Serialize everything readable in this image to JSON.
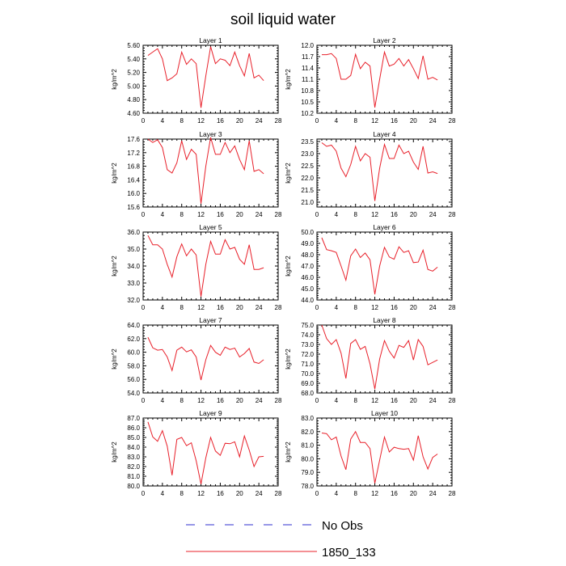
{
  "title": "soil liquid water",
  "chart_data": [
    {
      "type": "line",
      "title": "Layer 1",
      "ylabel": "kg/m^2",
      "xlim": [
        0,
        28
      ],
      "ylim": [
        4.6,
        5.6
      ],
      "xticks": [
        "0",
        "4",
        "8",
        "12",
        "16",
        "20",
        "24",
        "28"
      ],
      "yticks": [
        "4.60",
        "4.80",
        "5.00",
        "5.20",
        "5.40",
        "5.60"
      ],
      "series": [
        {
          "name": "1850_133",
          "x": [
            1,
            2,
            3,
            4,
            5,
            6,
            7,
            8,
            9,
            10,
            11,
            12,
            13,
            14,
            15,
            16,
            17,
            18,
            19,
            20,
            21,
            22,
            23,
            24,
            25
          ],
          "values": [
            5.45,
            5.5,
            5.55,
            5.4,
            5.08,
            5.12,
            5.18,
            5.5,
            5.32,
            5.4,
            5.33,
            4.68,
            5.15,
            5.58,
            5.33,
            5.4,
            5.38,
            5.3,
            5.5,
            5.3,
            5.15,
            5.48,
            5.12,
            5.16,
            5.08
          ]
        }
      ]
    },
    {
      "type": "line",
      "title": "Layer 2",
      "ylabel": "kg/m^2",
      "xlim": [
        0,
        28
      ],
      "ylim": [
        10.2,
        12.0
      ],
      "xticks": [
        "0",
        "4",
        "8",
        "12",
        "16",
        "20",
        "24",
        "28"
      ],
      "yticks": [
        "10.2",
        "10.5",
        "10.8",
        "11.1",
        "11.4",
        "11.7",
        "12.0"
      ],
      "series": [
        {
          "name": "1850_133",
          "x": [
            1,
            2,
            3,
            4,
            5,
            6,
            7,
            8,
            9,
            10,
            11,
            12,
            13,
            14,
            15,
            16,
            17,
            18,
            19,
            20,
            21,
            22,
            23,
            24,
            25
          ],
          "values": [
            11.75,
            11.75,
            11.78,
            11.65,
            11.1,
            11.1,
            11.2,
            11.76,
            11.38,
            11.55,
            11.45,
            10.35,
            11.1,
            11.82,
            11.45,
            11.5,
            11.65,
            11.45,
            11.62,
            11.38,
            11.12,
            11.72,
            11.1,
            11.15,
            11.08
          ]
        }
      ]
    },
    {
      "type": "line",
      "title": "Layer 3",
      "ylabel": "kg/m^2",
      "xlim": [
        0,
        28
      ],
      "ylim": [
        15.6,
        17.6
      ],
      "xticks": [
        "0",
        "4",
        "8",
        "12",
        "16",
        "20",
        "24",
        "28"
      ],
      "yticks": [
        "15.6",
        "16.0",
        "16.4",
        "16.8",
        "17.2",
        "17.6"
      ],
      "series": [
        {
          "name": "1850_133",
          "x": [
            1,
            2,
            3,
            4,
            5,
            6,
            7,
            8,
            9,
            10,
            11,
            12,
            13,
            14,
            15,
            16,
            17,
            18,
            19,
            20,
            21,
            22,
            23,
            24,
            25
          ],
          "values": [
            17.6,
            17.5,
            17.58,
            17.35,
            16.7,
            16.6,
            16.9,
            17.55,
            17.0,
            17.3,
            17.15,
            15.7,
            16.8,
            17.65,
            17.15,
            17.15,
            17.5,
            17.2,
            17.4,
            17.0,
            16.7,
            17.55,
            16.65,
            16.7,
            16.58
          ]
        }
      ]
    },
    {
      "type": "line",
      "title": "Layer 4",
      "ylabel": "kg/m^2",
      "xlim": [
        0,
        28
      ],
      "ylim": [
        20.8,
        23.6
      ],
      "xticks": [
        "0",
        "4",
        "8",
        "12",
        "16",
        "20",
        "24",
        "28"
      ],
      "yticks": [
        "21.0",
        "21.5",
        "22.0",
        "22.5",
        "23.0",
        "23.5"
      ],
      "series": [
        {
          "name": "1850_133",
          "x": [
            1,
            2,
            3,
            4,
            5,
            6,
            7,
            8,
            9,
            10,
            11,
            12,
            13,
            14,
            15,
            16,
            17,
            18,
            19,
            20,
            21,
            22,
            23,
            24,
            25
          ],
          "values": [
            23.45,
            23.3,
            23.35,
            23.1,
            22.4,
            22.05,
            22.55,
            23.3,
            22.7,
            23.0,
            22.85,
            21.05,
            22.4,
            23.38,
            22.8,
            22.8,
            23.35,
            23.0,
            23.1,
            22.65,
            22.35,
            23.3,
            22.2,
            22.25,
            22.18
          ]
        }
      ]
    },
    {
      "type": "line",
      "title": "Layer 5",
      "ylabel": "kg/m^2",
      "xlim": [
        0,
        28
      ],
      "ylim": [
        32.0,
        36.0
      ],
      "xticks": [
        "0",
        "4",
        "8",
        "12",
        "16",
        "20",
        "24",
        "28"
      ],
      "yticks": [
        "32.0",
        "33.0",
        "34.0",
        "35.0",
        "36.0"
      ],
      "series": [
        {
          "name": "1850_133",
          "x": [
            1,
            2,
            3,
            4,
            5,
            6,
            7,
            8,
            9,
            10,
            11,
            12,
            13,
            14,
            15,
            16,
            17,
            18,
            19,
            20,
            21,
            22,
            23,
            24,
            25
          ],
          "values": [
            35.8,
            35.25,
            35.25,
            35.0,
            34.1,
            33.35,
            34.55,
            35.3,
            34.6,
            35.0,
            34.65,
            32.2,
            34.1,
            35.45,
            34.7,
            34.7,
            35.55,
            35.0,
            35.1,
            34.4,
            34.1,
            35.25,
            33.8,
            33.8,
            33.9
          ]
        }
      ]
    },
    {
      "type": "line",
      "title": "Layer 6",
      "ylabel": "kg/m^2",
      "xlim": [
        0,
        28
      ],
      "ylim": [
        44.0,
        50.0
      ],
      "xticks": [
        "0",
        "4",
        "8",
        "12",
        "16",
        "20",
        "24",
        "28"
      ],
      "yticks": [
        "44.0",
        "45.0",
        "46.0",
        "47.0",
        "48.0",
        "49.0",
        "50.0"
      ],
      "series": [
        {
          "name": "1850_133",
          "x": [
            1,
            2,
            3,
            4,
            5,
            6,
            7,
            8,
            9,
            10,
            11,
            12,
            13,
            14,
            15,
            16,
            17,
            18,
            19,
            20,
            21,
            22,
            23,
            24,
            25
          ],
          "values": [
            49.5,
            48.45,
            48.35,
            48.2,
            47.0,
            45.75,
            47.9,
            48.5,
            47.75,
            48.15,
            47.55,
            44.5,
            47.0,
            48.65,
            47.8,
            47.6,
            48.7,
            48.2,
            48.35,
            47.3,
            47.35,
            48.4,
            46.7,
            46.55,
            46.9
          ]
        }
      ]
    },
    {
      "type": "line",
      "title": "Layer 7",
      "ylabel": "kg/m^2",
      "xlim": [
        0,
        28
      ],
      "ylim": [
        54.0,
        64.0
      ],
      "xticks": [
        "0",
        "4",
        "8",
        "12",
        "16",
        "20",
        "24",
        "28"
      ],
      "yticks": [
        "54.0",
        "56.0",
        "58.0",
        "60.0",
        "62.0",
        "64.0"
      ],
      "series": [
        {
          "name": "1850_133",
          "x": [
            1,
            2,
            3,
            4,
            5,
            6,
            7,
            8,
            9,
            10,
            11,
            12,
            13,
            14,
            15,
            16,
            17,
            18,
            19,
            20,
            21,
            22,
            23,
            24,
            25
          ],
          "values": [
            62.2,
            60.65,
            60.3,
            60.4,
            59.3,
            57.3,
            60.3,
            60.75,
            60.05,
            60.35,
            59.3,
            55.9,
            58.9,
            61.0,
            60.0,
            59.55,
            60.75,
            60.4,
            60.6,
            59.3,
            59.8,
            60.55,
            58.55,
            58.35,
            58.9
          ]
        }
      ]
    },
    {
      "type": "line",
      "title": "Layer 8",
      "ylabel": "kg/m^2",
      "xlim": [
        0,
        28
      ],
      "ylim": [
        68.0,
        75.0
      ],
      "xticks": [
        "0",
        "4",
        "8",
        "12",
        "16",
        "20",
        "24",
        "28"
      ],
      "yticks": [
        "68.0",
        "69.0",
        "70.0",
        "71.0",
        "72.0",
        "73.0",
        "74.0",
        "75.0"
      ],
      "series": [
        {
          "name": "1850_133",
          "x": [
            1,
            2,
            3,
            4,
            5,
            6,
            7,
            8,
            9,
            10,
            11,
            12,
            13,
            14,
            15,
            16,
            17,
            18,
            19,
            20,
            21,
            22,
            23,
            24,
            25
          ],
          "values": [
            75.0,
            73.6,
            73.0,
            73.5,
            72.1,
            69.5,
            73.1,
            73.5,
            72.5,
            72.8,
            71.0,
            68.4,
            71.5,
            73.4,
            72.3,
            71.6,
            72.9,
            72.7,
            73.4,
            71.4,
            73.5,
            72.8,
            70.9,
            71.15,
            71.4
          ]
        }
      ]
    },
    {
      "type": "line",
      "title": "Layer 9",
      "ylabel": "kg/m^2",
      "xlim": [
        0,
        28
      ],
      "ylim": [
        80.0,
        87.0
      ],
      "xticks": [
        "0",
        "4",
        "8",
        "12",
        "16",
        "20",
        "24",
        "28"
      ],
      "yticks": [
        "80.0",
        "81.0",
        "82.0",
        "83.0",
        "84.0",
        "85.0",
        "86.0",
        "87.0"
      ],
      "series": [
        {
          "name": "1850_133",
          "x": [
            1,
            2,
            3,
            4,
            5,
            6,
            7,
            8,
            9,
            10,
            11,
            12,
            13,
            14,
            15,
            16,
            17,
            18,
            19,
            20,
            21,
            22,
            23,
            24,
            25
          ],
          "values": [
            86.6,
            85.05,
            84.6,
            85.7,
            84.1,
            81.1,
            84.8,
            85.0,
            84.15,
            84.45,
            82.6,
            80.2,
            82.9,
            85.0,
            83.6,
            83.15,
            84.4,
            84.35,
            84.55,
            83.0,
            85.15,
            83.7,
            82.0,
            83.0,
            83.05
          ]
        }
      ]
    },
    {
      "type": "line",
      "title": "Layer 10",
      "ylabel": "kg/m^2",
      "xlim": [
        0,
        28
      ],
      "ylim": [
        78.0,
        83.0
      ],
      "xticks": [
        "0",
        "4",
        "8",
        "12",
        "16",
        "20",
        "24",
        "28"
      ],
      "yticks": [
        "78.0",
        "79.0",
        "80.0",
        "81.0",
        "82.0",
        "83.0"
      ],
      "series": [
        {
          "name": "1850_133",
          "x": [
            1,
            2,
            3,
            4,
            5,
            6,
            7,
            8,
            9,
            10,
            11,
            12,
            13,
            14,
            15,
            16,
            17,
            18,
            19,
            20,
            21,
            22,
            23,
            24,
            25
          ],
          "values": [
            81.9,
            81.85,
            81.4,
            81.6,
            80.2,
            79.2,
            81.45,
            82.0,
            81.2,
            81.2,
            80.75,
            78.2,
            79.9,
            81.6,
            80.5,
            80.85,
            80.75,
            80.7,
            80.75,
            79.9,
            81.7,
            80.15,
            79.25,
            80.1,
            80.35
          ]
        }
      ]
    }
  ],
  "legend": {
    "placement": "bottom-center",
    "entries": [
      {
        "label": "No Obs",
        "color": "#2f2fcf",
        "dash": "dashed"
      },
      {
        "label": "1850_133",
        "color": "#e8202a",
        "dash": "solid"
      }
    ]
  },
  "colors": {
    "series": "#e8202a",
    "obs": "#2f2fcf",
    "axis": "#000000"
  }
}
